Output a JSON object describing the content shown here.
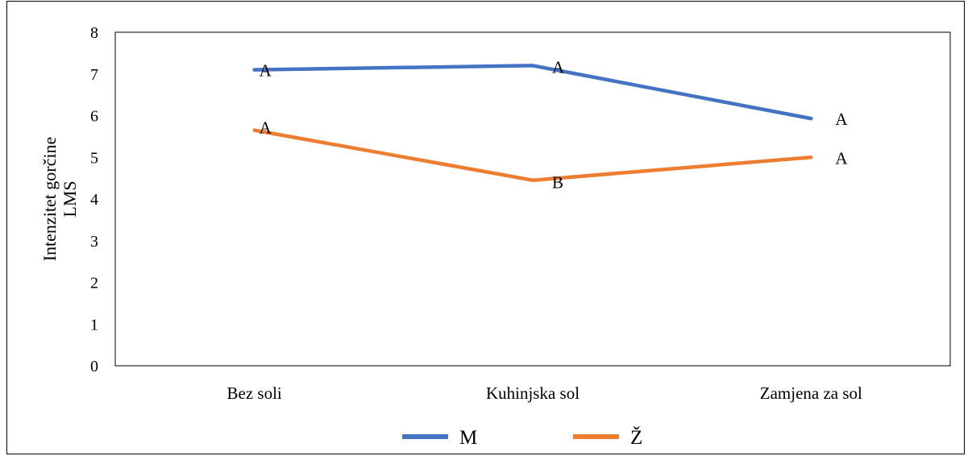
{
  "chart_data": {
    "type": "line",
    "categories": [
      "Bez soli",
      "Kuhinjska sol",
      "Zamjena za sol"
    ],
    "ylabel": [
      "Intenzitet gorčine",
      "LMS"
    ],
    "ylim": [
      0,
      8
    ],
    "yticks": [
      0,
      1,
      2,
      3,
      4,
      5,
      6,
      7,
      8
    ],
    "grid": false,
    "legend": "bottom",
    "series": [
      {
        "name": "M",
        "color": "#4472C4",
        "values": [
          7.1,
          7.2,
          5.93
        ],
        "labels": [
          "A",
          "A",
          "A"
        ]
      },
      {
        "name": "Ž",
        "color": "#ED7D31",
        "values": [
          5.65,
          4.45,
          5.0
        ],
        "labels": [
          "A",
          "B",
          "A"
        ]
      }
    ]
  }
}
